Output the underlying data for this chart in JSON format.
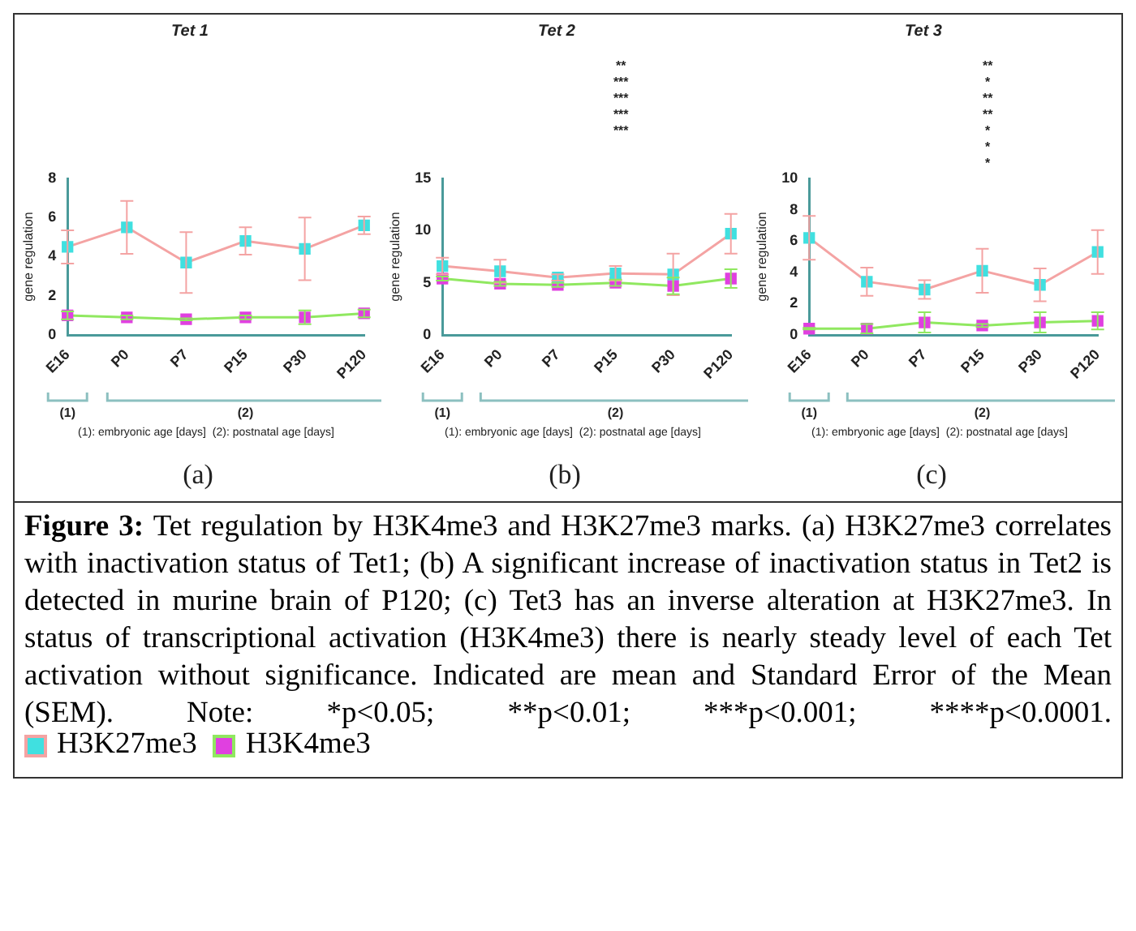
{
  "chart_data": [
    {
      "type": "line",
      "title": "Tet 1",
      "ylabel": "gene regulation",
      "categories": [
        "E16",
        "P0",
        "P7",
        "P15",
        "P30",
        "P120"
      ],
      "ylim": [
        0,
        8
      ],
      "yticks": [
        0,
        2,
        4,
        6,
        8
      ],
      "grid": false,
      "marker": "square",
      "legend": "bottom",
      "series": [
        {
          "name": "H3K27me3",
          "color": "#f4a3a3",
          "colors": [
            "#40e0e0",
            "#40e0e0",
            "#40e0e0",
            "#40e0e0",
            "#40e0e0",
            "#40e0e0"
          ],
          "values": [
            4.5,
            5.5,
            3.7,
            4.8,
            4.4,
            5.6
          ],
          "errors": [
            0.85,
            1.35,
            1.55,
            0.7,
            1.6,
            0.45
          ]
        },
        {
          "name": "H3K4me3",
          "color": "#90e860",
          "colors": [
            "#e040e0",
            "#e040e0",
            "#e040e0",
            "#e040e0",
            "#e040e0",
            "#e040e0"
          ],
          "values": [
            1.0,
            0.9,
            0.8,
            0.9,
            0.9,
            1.1
          ],
          "errors": [
            0.2,
            0.1,
            0.05,
            0.1,
            0.35,
            0.2
          ]
        }
      ],
      "annotations": [
        "(a)",
        "(1)",
        "(2)",
        "(1): embryonic age [days]  (2): postnatal age [days]"
      ]
    },
    {
      "type": "line",
      "title": "Tet 2",
      "ylabel": "gene regulation",
      "categories": [
        "E16",
        "P0",
        "P7",
        "P15",
        "P30",
        "P120"
      ],
      "ylim": [
        0,
        15
      ],
      "yticks": [
        0,
        5,
        10,
        15
      ],
      "grid": false,
      "marker": "square",
      "series": [
        {
          "color": "#f4a3a3",
          "colors": [
            "#40e0e0",
            "#40e0e0",
            "#40e0e0",
            "#40e0e0",
            "#40e0e0",
            "#40e0e0"
          ],
          "values": [
            6.6,
            6.1,
            5.5,
            5.9,
            5.8,
            9.7
          ],
          "errors": [
            0.8,
            1.1,
            0.3,
            0.7,
            2.0,
            1.9
          ]
        },
        {
          "color": "#90e860",
          "colors": [
            "#e040e0",
            "#e040e0",
            "#e040e0",
            "#e040e0",
            "#e040e0",
            "#e040e0"
          ],
          "values": [
            5.4,
            4.9,
            4.8,
            5.0,
            4.7,
            5.4
          ],
          "errors": [
            0.2,
            0.2,
            0.2,
            0.3,
            0.8,
            0.9
          ]
        }
      ],
      "annotations": [
        "(b)",
        "(1)",
        "(2)",
        "(1): embryonic age [days]  (2): postnatal age [days]",
        "**",
        "***",
        "***",
        "***",
        "***"
      ]
    },
    {
      "type": "line",
      "title": "Tet 3",
      "ylabel": "gene regulation",
      "categories": [
        "E16",
        "P0",
        "P7",
        "P15",
        "P30",
        "P120"
      ],
      "ylim": [
        0,
        10
      ],
      "yticks": [
        0,
        2,
        4,
        6,
        8,
        10
      ],
      "grid": false,
      "marker": "square",
      "series": [
        {
          "color": "#f4a3a3",
          "colors": [
            "#40e0e0",
            "#40e0e0",
            "#40e0e0",
            "#40e0e0",
            "#40e0e0",
            "#40e0e0"
          ],
          "values": [
            6.2,
            3.4,
            2.9,
            4.1,
            3.2,
            5.3
          ],
          "errors": [
            1.4,
            0.9,
            0.6,
            1.4,
            1.05,
            1.4
          ]
        },
        {
          "color": "#90e860",
          "colors": [
            "#e040e0",
            "#e040e0",
            "#e040e0",
            "#e040e0",
            "#e040e0",
            "#e040e0"
          ],
          "values": [
            0.4,
            0.4,
            0.8,
            0.6,
            0.8,
            0.9
          ],
          "errors": [
            0.05,
            0.3,
            0.65,
            0.1,
            0.65,
            0.55
          ]
        }
      ],
      "annotations": [
        "(c)",
        "(1)",
        "(2)",
        "(1): embryonic age [days]  (2): postnatal age [days]",
        "**",
        "*",
        "**",
        "**",
        "*",
        "*",
        "*"
      ]
    },
    {
      "type": "other",
      "title": "Figure 3:",
      "annotations": [
        "Tet regulation by H3K4me3 and H3K27me3 marks. (a) H3K27me3 correlates with inactivation status of Tet1; (b) A significant increase of inactivation status in Tet2 is detected in murine brain of P120; (c) Tet3 has an inverse alteration at H3K27me3. In status of transcriptional activation (H3K4me3) there is nearly steady level of each Tet activation without significance. Indicated are mean and Standard Error of the Mean (SEM). Note: *p<0.05; **p<0.01; ***p<0.001; ****p<0.0001."
      ]
    }
  ]
}
